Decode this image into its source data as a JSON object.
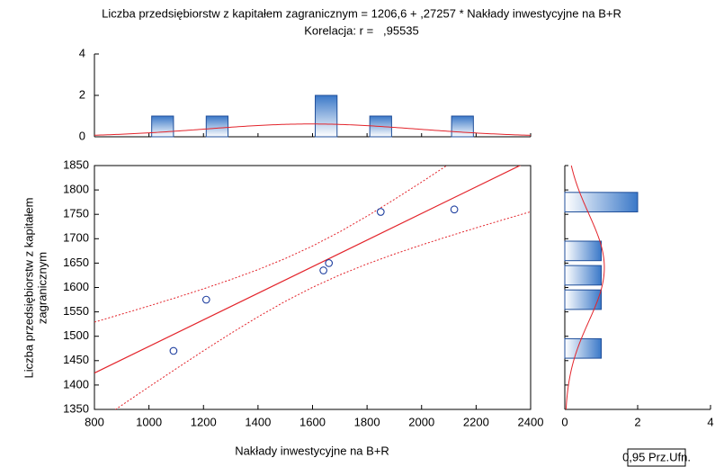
{
  "chart_data": {
    "type": "scatter",
    "title": "Liczba przedsiębiorstw z kapitałem zagranicznym = 1206,6 + ,27257 * Nakłady inwestycyjne na B+R",
    "subtitle": "Korelacja: r =   ,95535",
    "xlabel": "Nakłady inwestycyjne na B+R",
    "ylabel": [
      "Liczba przedsiębiorstw z kapitałem",
      "zagranicznym"
    ],
    "xlim": [
      800,
      2400
    ],
    "ylim": [
      1350,
      1850
    ],
    "xticks": [
      800,
      1000,
      1200,
      1400,
      1600,
      1800,
      2000,
      2200,
      2400
    ],
    "yticks": [
      1350,
      1400,
      1450,
      1500,
      1550,
      1600,
      1650,
      1700,
      1750,
      1800,
      1850
    ],
    "points": {
      "color": "#1f3f9f",
      "x": [
        1090,
        1210,
        1640,
        1660,
        1850,
        2120
      ],
      "y": [
        1470,
        1575,
        1635,
        1650,
        1755,
        1760
      ]
    },
    "fit": {
      "intercept": 1206.6,
      "slope": 0.27257,
      "color": "#e3242b"
    },
    "confidence_band": {
      "name": "0,95 Prz.Ufn.",
      "color": "#e3242b",
      "x": [
        800,
        900,
        1000,
        1100,
        1200,
        1300,
        1400,
        1500,
        1600,
        1700,
        1800,
        1900,
        2000,
        2100,
        2200,
        2300,
        2400
      ],
      "upper": [
        1529.0,
        1545.4,
        1562.1,
        1579.3,
        1597.2,
        1616.2,
        1636.6,
        1659.4,
        1685.1,
        1714.2,
        1746.2,
        1780.5,
        1816.1,
        1852.9,
        1890.3,
        1928.0,
        1966.2
      ],
      "lower": [
        1320.4,
        1358.4,
        1396.3,
        1433.5,
        1470.2,
        1505.8,
        1539.8,
        1571.6,
        1600.3,
        1625.8,
        1648.2,
        1668.5,
        1687.3,
        1705.1,
        1722.3,
        1739.0,
        1755.4
      ]
    },
    "top_histogram": {
      "bins": [
        800,
        900,
        1000,
        1100,
        1200,
        1300,
        1400,
        1500,
        1600,
        1700,
        1800,
        1900,
        2000,
        2100,
        2200,
        2300,
        2400
      ],
      "counts": [
        0,
        0,
        1,
        0,
        1,
        0,
        0,
        0,
        2,
        0,
        1,
        0,
        0,
        1,
        0,
        0
      ],
      "ylim": [
        0,
        4
      ],
      "yticks": [
        0,
        2,
        4
      ],
      "normal_fit": {
        "mean": 1595,
        "sd": 387
      }
    },
    "right_histogram": {
      "bins": [
        1350,
        1400,
        1450,
        1500,
        1550,
        1600,
        1650,
        1700,
        1750,
        1800,
        1850
      ],
      "counts": [
        0,
        0,
        1,
        0,
        1,
        1,
        1,
        0,
        2,
        0
      ],
      "xlim": [
        0,
        4
      ],
      "xticks": [
        0,
        2,
        4
      ],
      "normal_fit": {
        "mean": 1640.8,
        "sd": 110.3
      }
    }
  }
}
